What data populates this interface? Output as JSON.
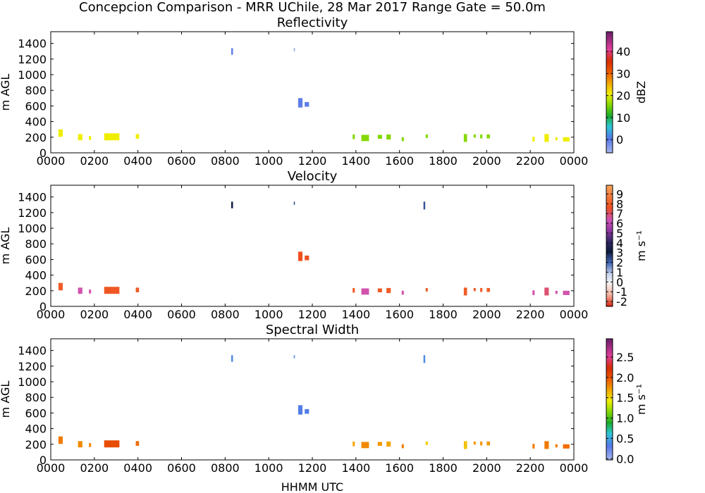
{
  "title": "Concepcion Comparison - MRR UChile, 28 Mar 2017 Range Gate = 50.0m",
  "xlabel": "HHMM UTC",
  "chart_data": [
    {
      "type": "heatmap",
      "title": "Reflectivity",
      "ylabel": "m AGL",
      "xlim": [
        0,
        24
      ],
      "ylim": [
        0,
        1550
      ],
      "x_ticks": [
        "0000",
        "0200",
        "0400",
        "0600",
        "0800",
        "1000",
        "1200",
        "1400",
        "1600",
        "1800",
        "2000",
        "2200",
        "0000"
      ],
      "y_ticks": [
        0,
        200,
        400,
        600,
        800,
        1000,
        1200,
        1400
      ],
      "colorbar": {
        "label": "dBZ",
        "range": [
          -6,
          49
        ],
        "ticks": [
          {
            "v": 0,
            "t": "0"
          },
          {
            "v": 10,
            "t": "10"
          },
          {
            "v": 20,
            "t": "20"
          },
          {
            "v": 30,
            "t": "30"
          },
          {
            "v": 40,
            "t": "40"
          }
        ],
        "stops": [
          {
            "p": 0,
            "c": "#a9b8ee"
          },
          {
            "p": 0.12,
            "c": "#5577e8"
          },
          {
            "p": 0.22,
            "c": "#2ec7d9"
          },
          {
            "p": 0.31,
            "c": "#1bab2b"
          },
          {
            "p": 0.4,
            "c": "#84d800"
          },
          {
            "p": 0.49,
            "c": "#f0ef00"
          },
          {
            "p": 0.58,
            "c": "#f2a600"
          },
          {
            "p": 0.67,
            "c": "#ee5a00"
          },
          {
            "p": 0.76,
            "c": "#d82d00"
          },
          {
            "p": 0.86,
            "c": "#e03d9a"
          },
          {
            "p": 1,
            "c": "#6b1f6b"
          }
        ]
      },
      "segments": [
        {
          "t0": 0.35,
          "t1": 0.55,
          "h0": 205,
          "h1": 300,
          "v": 21
        },
        {
          "t0": 1.25,
          "t1": 1.45,
          "h0": 160,
          "h1": 240,
          "v": 21
        },
        {
          "t0": 1.75,
          "t1": 1.85,
          "h0": 165,
          "h1": 215,
          "v": 21
        },
        {
          "t0": 2.45,
          "t1": 3.15,
          "h0": 160,
          "h1": 250,
          "v": 21
        },
        {
          "t0": 3.9,
          "t1": 4.05,
          "h0": 180,
          "h1": 240,
          "v": 21
        },
        {
          "t0": 8.28,
          "t1": 8.36,
          "h0": 1255,
          "h1": 1340,
          "v": 0
        },
        {
          "t0": 11.15,
          "t1": 11.2,
          "h0": 1300,
          "h1": 1340,
          "v": -3
        },
        {
          "t0": 11.35,
          "t1": 11.55,
          "h0": 580,
          "h1": 700,
          "v": 0
        },
        {
          "t0": 11.65,
          "t1": 11.85,
          "h0": 590,
          "h1": 650,
          "v": 0
        },
        {
          "t0": 13.85,
          "t1": 13.95,
          "h0": 175,
          "h1": 235,
          "v": 16
        },
        {
          "t0": 14.25,
          "t1": 14.6,
          "h0": 150,
          "h1": 230,
          "v": 16
        },
        {
          "t0": 15.0,
          "t1": 15.2,
          "h0": 180,
          "h1": 230,
          "v": 16
        },
        {
          "t0": 15.4,
          "t1": 15.6,
          "h0": 170,
          "h1": 235,
          "v": 16
        },
        {
          "t0": 16.1,
          "t1": 16.2,
          "h0": 150,
          "h1": 200,
          "v": 16
        },
        {
          "t0": 17.2,
          "t1": 17.3,
          "h0": 190,
          "h1": 235,
          "v": 16
        },
        {
          "t0": 18.95,
          "t1": 19.1,
          "h0": 140,
          "h1": 240,
          "v": 16
        },
        {
          "t0": 19.4,
          "t1": 19.5,
          "h0": 195,
          "h1": 235,
          "v": 16
        },
        {
          "t0": 19.7,
          "t1": 19.8,
          "h0": 185,
          "h1": 235,
          "v": 16
        },
        {
          "t0": 20.0,
          "t1": 20.15,
          "h0": 185,
          "h1": 235,
          "v": 16
        },
        {
          "t0": 22.1,
          "t1": 22.2,
          "h0": 145,
          "h1": 205,
          "v": 21
        },
        {
          "t0": 22.65,
          "t1": 22.85,
          "h0": 140,
          "h1": 240,
          "v": 21
        },
        {
          "t0": 23.15,
          "t1": 23.25,
          "h0": 160,
          "h1": 200,
          "v": 21
        },
        {
          "t0": 23.5,
          "t1": 23.8,
          "h0": 145,
          "h1": 200,
          "v": 21
        }
      ]
    },
    {
      "type": "heatmap",
      "title": "Velocity",
      "ylabel": "m AGL",
      "xlim": [
        0,
        24
      ],
      "ylim": [
        0,
        1550
      ],
      "x_ticks": [
        "0000",
        "0200",
        "0400",
        "0600",
        "0800",
        "1000",
        "1200",
        "1400",
        "1600",
        "1800",
        "2000",
        "2200",
        "0000"
      ],
      "y_ticks": [
        0,
        200,
        400,
        600,
        800,
        1000,
        1200,
        1400
      ],
      "colorbar": {
        "label": "m s⁻¹",
        "range": [
          -2.5,
          9.9
        ],
        "ticks": [
          {
            "v": -2,
            "t": "-2"
          },
          {
            "v": -1,
            "t": "-1"
          },
          {
            "v": 0,
            "t": "0"
          },
          {
            "v": 1,
            "t": "1"
          },
          {
            "v": 2,
            "t": "2"
          },
          {
            "v": 3,
            "t": "3"
          },
          {
            "v": 4,
            "t": "4"
          },
          {
            "v": 5,
            "t": "5"
          },
          {
            "v": 6,
            "t": "6"
          },
          {
            "v": 7,
            "t": "7"
          },
          {
            "v": 8,
            "t": "8"
          },
          {
            "v": 9,
            "t": "9"
          }
        ],
        "stops": [
          {
            "p": 0,
            "c": "#d81e05"
          },
          {
            "p": 0.1,
            "c": "#f5b3a2"
          },
          {
            "p": 0.2,
            "c": "#f5f5f5"
          },
          {
            "p": 0.27,
            "c": "#c6d3ee"
          },
          {
            "p": 0.36,
            "c": "#4468b8"
          },
          {
            "p": 0.46,
            "c": "#0d1a3d"
          },
          {
            "p": 0.55,
            "c": "#3b2a6c"
          },
          {
            "p": 0.64,
            "c": "#9b3aa8"
          },
          {
            "p": 0.72,
            "c": "#cf53b6"
          },
          {
            "p": 0.82,
            "c": "#ee4f1e"
          },
          {
            "p": 1,
            "c": "#f7a45a"
          }
        ]
      },
      "segments": [
        {
          "t0": 0.35,
          "t1": 0.55,
          "h0": 205,
          "h1": 300,
          "v": 8.0
        },
        {
          "t0": 1.25,
          "t1": 1.45,
          "h0": 160,
          "h1": 240,
          "v": 6.5
        },
        {
          "t0": 1.75,
          "t1": 1.85,
          "h0": 165,
          "h1": 215,
          "v": 6.5
        },
        {
          "t0": 2.45,
          "t1": 3.15,
          "h0": 160,
          "h1": 250,
          "v": 7.9
        },
        {
          "t0": 3.9,
          "t1": 4.05,
          "h0": 180,
          "h1": 240,
          "v": 8.0
        },
        {
          "t0": 8.28,
          "t1": 8.36,
          "h0": 1255,
          "h1": 1340,
          "v": 3.3
        },
        {
          "t0": 11.15,
          "t1": 11.2,
          "h0": 1300,
          "h1": 1340,
          "v": 2.5
        },
        {
          "t0": 11.35,
          "t1": 11.55,
          "h0": 580,
          "h1": 700,
          "v": 7.7
        },
        {
          "t0": 11.65,
          "t1": 11.85,
          "h0": 590,
          "h1": 650,
          "v": 7.7
        },
        {
          "t0": 13.85,
          "t1": 13.95,
          "h0": 175,
          "h1": 235,
          "v": 8.0
        },
        {
          "t0": 14.25,
          "t1": 14.6,
          "h0": 150,
          "h1": 230,
          "v": 6.5
        },
        {
          "t0": 15.0,
          "t1": 15.2,
          "h0": 180,
          "h1": 230,
          "v": 8.0
        },
        {
          "t0": 15.4,
          "t1": 15.6,
          "h0": 170,
          "h1": 235,
          "v": 8.0
        },
        {
          "t0": 16.1,
          "t1": 16.2,
          "h0": 150,
          "h1": 200,
          "v": 6.5
        },
        {
          "t0": 17.2,
          "t1": 17.3,
          "h0": 190,
          "h1": 235,
          "v": 8.0
        },
        {
          "t0": 17.1,
          "t1": 17.18,
          "h0": 1240,
          "h1": 1340,
          "v": 2.3
        },
        {
          "t0": 18.95,
          "t1": 19.1,
          "h0": 140,
          "h1": 240,
          "v": 8.0
        },
        {
          "t0": 19.4,
          "t1": 19.5,
          "h0": 195,
          "h1": 235,
          "v": 8.0
        },
        {
          "t0": 19.7,
          "t1": 19.8,
          "h0": 185,
          "h1": 235,
          "v": 8.0
        },
        {
          "t0": 20.0,
          "t1": 20.15,
          "h0": 185,
          "h1": 235,
          "v": 8.0
        },
        {
          "t0": 22.1,
          "t1": 22.2,
          "h0": 145,
          "h1": 205,
          "v": 6.5
        },
        {
          "t0": 22.65,
          "t1": 22.85,
          "h0": 140,
          "h1": 240,
          "v": 7.0
        },
        {
          "t0": 23.15,
          "t1": 23.25,
          "h0": 160,
          "h1": 200,
          "v": 6.5
        },
        {
          "t0": 23.5,
          "t1": 23.8,
          "h0": 145,
          "h1": 200,
          "v": 6.5
        }
      ]
    },
    {
      "type": "heatmap",
      "title": "Spectral Width",
      "ylabel": "m AGL",
      "xlim": [
        0,
        24
      ],
      "ylim": [
        0,
        1550
      ],
      "x_ticks": [
        "0000",
        "0200",
        "0400",
        "0600",
        "0800",
        "1000",
        "1200",
        "1400",
        "1600",
        "1800",
        "2000",
        "2200",
        "0000"
      ],
      "y_ticks": [
        0,
        200,
        400,
        600,
        800,
        1000,
        1200,
        1400
      ],
      "colorbar": {
        "label": "m s⁻¹",
        "range": [
          -0.03,
          2.95
        ],
        "ticks": [
          {
            "v": 0,
            "t": "0.0"
          },
          {
            "v": 0.5,
            "t": "0.5"
          },
          {
            "v": 1,
            "t": "1.0"
          },
          {
            "v": 1.5,
            "t": "1.5"
          },
          {
            "v": 2,
            "t": "2.0"
          },
          {
            "v": 2.5,
            "t": "2.5"
          }
        ],
        "stops": [
          {
            "p": 0,
            "c": "#a9b8ee"
          },
          {
            "p": 0.12,
            "c": "#5577e8"
          },
          {
            "p": 0.22,
            "c": "#2ec7d9"
          },
          {
            "p": 0.31,
            "c": "#1bab2b"
          },
          {
            "p": 0.4,
            "c": "#84d800"
          },
          {
            "p": 0.49,
            "c": "#f0ef00"
          },
          {
            "p": 0.58,
            "c": "#f2a600"
          },
          {
            "p": 0.67,
            "c": "#ee5a00"
          },
          {
            "p": 0.76,
            "c": "#d82d00"
          },
          {
            "p": 0.86,
            "c": "#e03d9a"
          },
          {
            "p": 1,
            "c": "#6b1f6b"
          }
        ]
      },
      "segments": [
        {
          "t0": 0.35,
          "t1": 0.55,
          "h0": 205,
          "h1": 300,
          "v": 1.85
        },
        {
          "t0": 1.25,
          "t1": 1.45,
          "h0": 160,
          "h1": 240,
          "v": 1.8
        },
        {
          "t0": 1.75,
          "t1": 1.85,
          "h0": 165,
          "h1": 215,
          "v": 1.8
        },
        {
          "t0": 2.45,
          "t1": 3.15,
          "h0": 160,
          "h1": 250,
          "v": 2.05
        },
        {
          "t0": 3.9,
          "t1": 4.05,
          "h0": 180,
          "h1": 240,
          "v": 1.9
        },
        {
          "t0": 8.28,
          "t1": 8.36,
          "h0": 1255,
          "h1": 1340,
          "v": 0.4
        },
        {
          "t0": 11.15,
          "t1": 11.2,
          "h0": 1300,
          "h1": 1340,
          "v": 0.4
        },
        {
          "t0": 11.35,
          "t1": 11.55,
          "h0": 580,
          "h1": 700,
          "v": 0.35
        },
        {
          "t0": 11.65,
          "t1": 11.85,
          "h0": 590,
          "h1": 650,
          "v": 0.35
        },
        {
          "t0": 13.85,
          "t1": 13.95,
          "h0": 175,
          "h1": 235,
          "v": 1.7
        },
        {
          "t0": 14.25,
          "t1": 14.6,
          "h0": 150,
          "h1": 230,
          "v": 1.8
        },
        {
          "t0": 15.0,
          "t1": 15.2,
          "h0": 180,
          "h1": 230,
          "v": 1.75
        },
        {
          "t0": 15.4,
          "t1": 15.6,
          "h0": 170,
          "h1": 235,
          "v": 1.7
        },
        {
          "t0": 16.1,
          "t1": 16.2,
          "h0": 150,
          "h1": 200,
          "v": 1.85
        },
        {
          "t0": 17.2,
          "t1": 17.3,
          "h0": 190,
          "h1": 235,
          "v": 1.55
        },
        {
          "t0": 17.1,
          "t1": 17.18,
          "h0": 1240,
          "h1": 1340,
          "v": 0.4
        },
        {
          "t0": 18.95,
          "t1": 19.1,
          "h0": 140,
          "h1": 240,
          "v": 1.6
        },
        {
          "t0": 19.4,
          "t1": 19.5,
          "h0": 195,
          "h1": 235,
          "v": 1.75
        },
        {
          "t0": 19.7,
          "t1": 19.8,
          "h0": 185,
          "h1": 235,
          "v": 1.75
        },
        {
          "t0": 20.0,
          "t1": 20.15,
          "h0": 185,
          "h1": 235,
          "v": 1.75
        },
        {
          "t0": 22.1,
          "t1": 22.2,
          "h0": 145,
          "h1": 205,
          "v": 1.85
        },
        {
          "t0": 22.65,
          "t1": 22.85,
          "h0": 140,
          "h1": 240,
          "v": 1.85
        },
        {
          "t0": 23.15,
          "t1": 23.25,
          "h0": 160,
          "h1": 200,
          "v": 1.85
        },
        {
          "t0": 23.5,
          "t1": 23.8,
          "h0": 145,
          "h1": 200,
          "v": 1.9
        }
      ]
    }
  ]
}
